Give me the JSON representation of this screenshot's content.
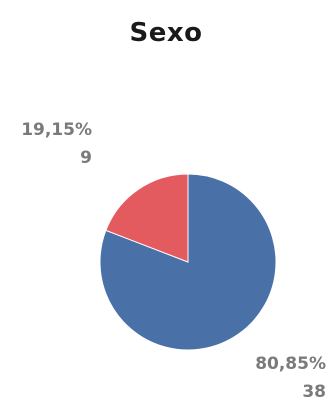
{
  "chart_data": {
    "type": "pie",
    "title": "Sexo",
    "slices": [
      {
        "value": 38,
        "percent_label": "80,85%",
        "count_label": "38",
        "color": "#4a70a8"
      },
      {
        "value": 9,
        "percent_label": "19,15%",
        "count_label": "9",
        "color": "#e35a5f"
      }
    ]
  },
  "colors": {
    "title": "#1a1a1a",
    "labels": "#7a7a7a"
  }
}
